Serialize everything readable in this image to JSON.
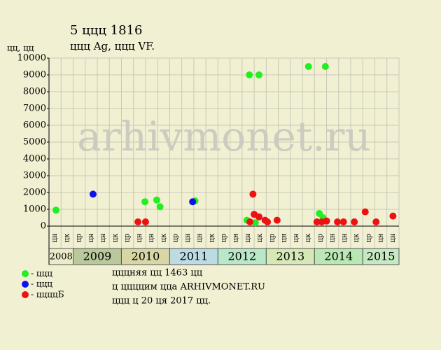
{
  "chart_data": {
    "type": "scatter",
    "title": "5 ццц 1816",
    "subtitle": "ццц Ag, ццц VF.",
    "y_label": "цц, цц",
    "watermark": "arhivmonet.ru",
    "xlim": [
      0,
      29
    ],
    "ylim": [
      0,
      10000
    ],
    "yticks": [
      0,
      1000,
      2000,
      3000,
      4000,
      5000,
      6000,
      7000,
      8000,
      9000,
      10000
    ],
    "grid": true,
    "periods": [
      "цн",
      "цк",
      "цр",
      "цн",
      "цн",
      "цк",
      "цр",
      "цн",
      "цн",
      "цк",
      "цр",
      "цн",
      "цн",
      "цк",
      "цр",
      "цн",
      "цн",
      "цк",
      "цр",
      "цн",
      "цн",
      "цк",
      "цр",
      "цн",
      "цн",
      "цк",
      "цр",
      "цн",
      "цн"
    ],
    "years": [
      "2008",
      "2009",
      "2010",
      "2011",
      "2012",
      "2013",
      "2014",
      "2015"
    ],
    "year_colors": [
      "#ecebc8",
      "#b9c99c",
      "#d9d6a6",
      "#bcdbe2",
      "#b9e8c9",
      "#d6e8b6",
      "#b9e8b4",
      "#c6e8c2"
    ],
    "series": [
      {
        "name": "- ццц",
        "color": "#22ee22",
        "x": [
          0.58,
          7.95,
          8.93,
          9.2,
          12.1,
          16.6,
          17.4,
          16.4,
          17.1,
          21.5,
          22.9,
          22.4,
          22.7
        ],
        "values": [
          950,
          1450,
          1550,
          1150,
          1500,
          9000,
          9000,
          350,
          200,
          9500,
          9500,
          750,
          500
        ]
      },
      {
        "name": "- ццц",
        "color": "#1111ee",
        "x": [
          3.65,
          11.9
        ],
        "values": [
          1900,
          1450
        ]
      },
      {
        "name": "- ццццБ",
        "color": "#ee1111",
        "x": [
          7.37,
          8.0,
          16.9,
          17.0,
          16.65,
          17.4,
          17.9,
          18.1,
          18.9,
          22.2,
          22.6,
          23.0,
          23.9,
          24.4,
          25.3,
          26.2,
          27.1,
          28.5
        ],
        "values": [
          250,
          250,
          1900,
          700,
          250,
          550,
          350,
          250,
          350,
          250,
          250,
          300,
          250,
          250,
          250,
          850,
          250,
          600
        ]
      }
    ],
    "notes": [
      "цццняя цц 1463 цц",
      "ц ццццим цца ARHIVMONET.RU",
      "ццц ц 20 ця 2017 цц."
    ]
  }
}
